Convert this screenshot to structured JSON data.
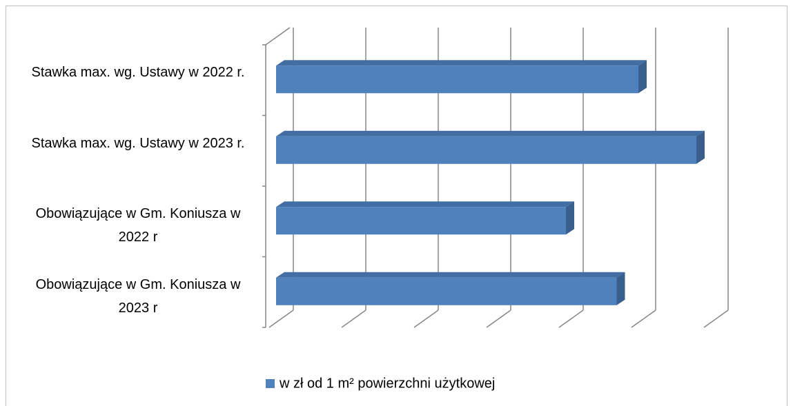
{
  "chart_data": {
    "type": "bar3d_horizontal",
    "categories": [
      "Stawka max. wg. Ustawy w 2022 r.",
      "Stawka max. wg. Ustawy w 2023 r.",
      "Obowiązujące w Gm. Koniusza w 2022 r",
      "Obowiązujące w Gm. Koniusza w 2023 r"
    ],
    "series": [
      {
        "name": "w zł od 1 m² powierzchni użytkowej",
        "color": "#4f81bd",
        "values": [
          25,
          29,
          20,
          23.5
        ]
      }
    ],
    "xlim": [
      0,
      30
    ],
    "xticks": [
      0,
      5,
      10,
      15,
      20,
      25,
      30
    ],
    "grid": true,
    "legend": "bottom"
  }
}
